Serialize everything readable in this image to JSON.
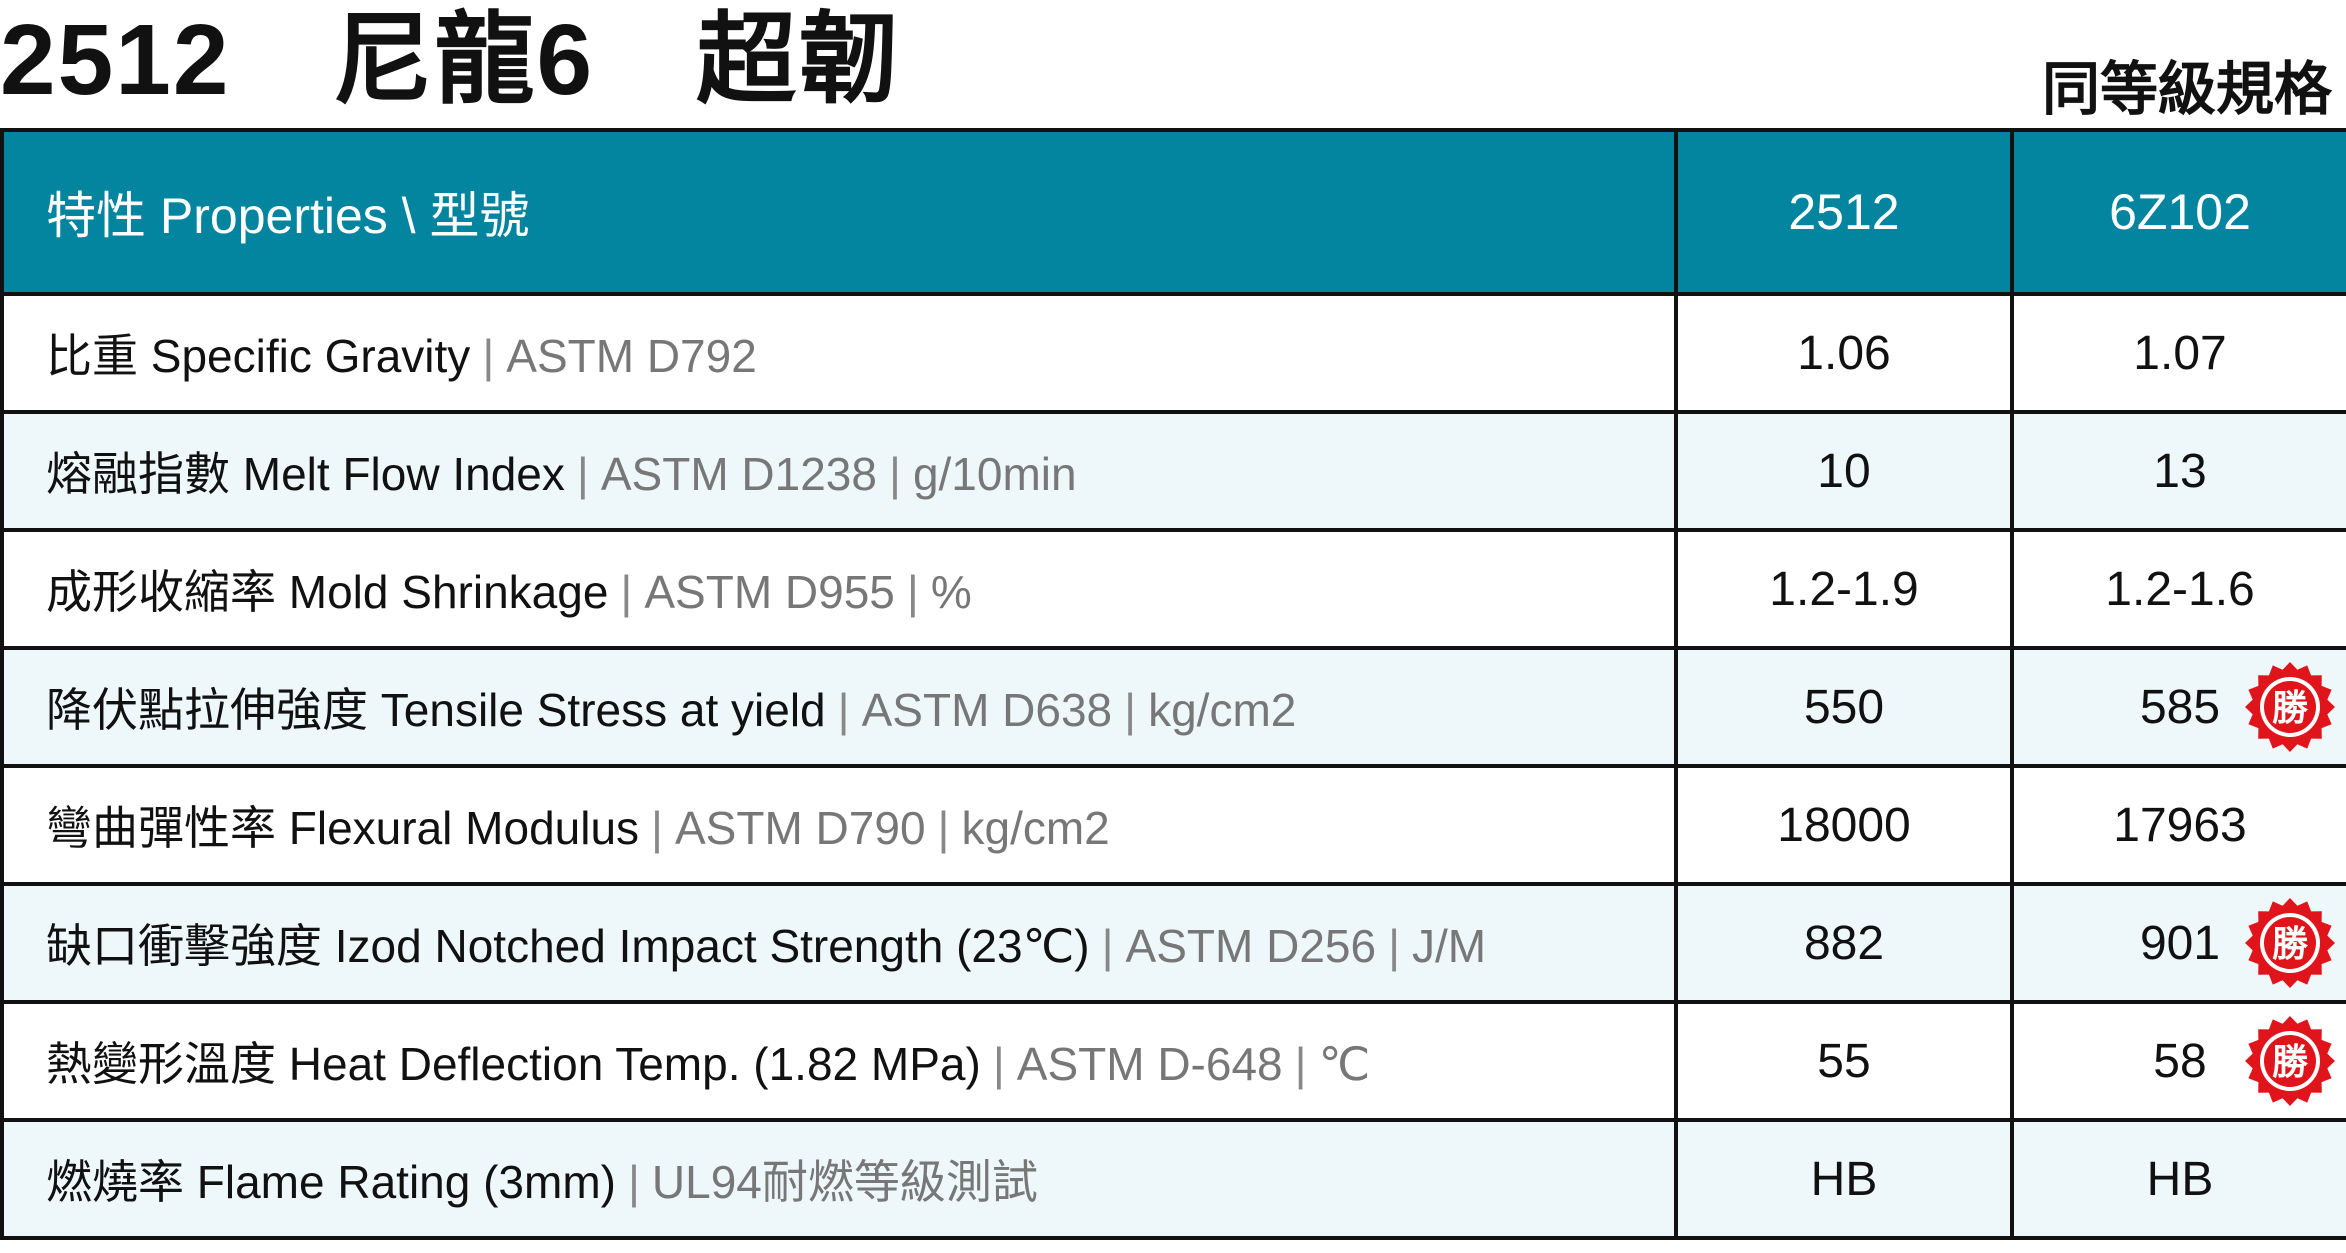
{
  "header": {
    "title": "2512　尼龍6　超韌",
    "subtitle": "同等級規格"
  },
  "table": {
    "columns": [
      "特性 Properties \\ 型號",
      "2512",
      "6Z102"
    ],
    "rows": [
      {
        "name": "比重 Specific Gravity",
        "standard": "ASTM D792",
        "unit": "",
        "value_a": "1.06",
        "value_b": "1.07",
        "winner_b": false
      },
      {
        "name": "熔融指數 Melt Flow Index",
        "standard": "ASTM D1238",
        "unit": "g/10min",
        "value_a": "10",
        "value_b": "13",
        "winner_b": false
      },
      {
        "name": "成形收縮率 Mold Shrinkage",
        "standard": "ASTM D955",
        "unit": "%",
        "value_a": "1.2-1.9",
        "value_b": "1.2-1.6",
        "winner_b": false
      },
      {
        "name": "降伏點拉伸強度 Tensile Stress at yield",
        "standard": "ASTM D638",
        "unit": "kg/cm2",
        "value_a": "550",
        "value_b": "585",
        "winner_b": true
      },
      {
        "name": "彎曲彈性率 Flexural Modulus",
        "standard": "ASTM D790",
        "unit": "kg/cm2",
        "value_a": "18000",
        "value_b": "17963",
        "winner_b": false
      },
      {
        "name": "缺口衝擊強度 Izod Notched Impact Strength (23℃)",
        "standard": "ASTM D256",
        "unit": "J/M",
        "value_a": "882",
        "value_b": "901",
        "winner_b": true
      },
      {
        "name": "熱變形溫度 Heat Deflection Temp. (1.82 MPa)",
        "standard": "ASTM D-648",
        "unit": "℃",
        "value_a": "55",
        "value_b": "58",
        "winner_b": true
      },
      {
        "name": "燃燒率 Flame Rating (3mm)",
        "standard": "UL94耐燃等級測試",
        "unit": "",
        "value_a": "HB",
        "value_b": "HB",
        "winner_b": false
      }
    ],
    "badge_label": "勝",
    "badge_icon": "winner-badge-icon"
  },
  "colors": {
    "header_bg": "#03849f",
    "alt_row_bg": "#eef7fa",
    "badge_red": "#e0151c",
    "muted_text": "#777777"
  }
}
